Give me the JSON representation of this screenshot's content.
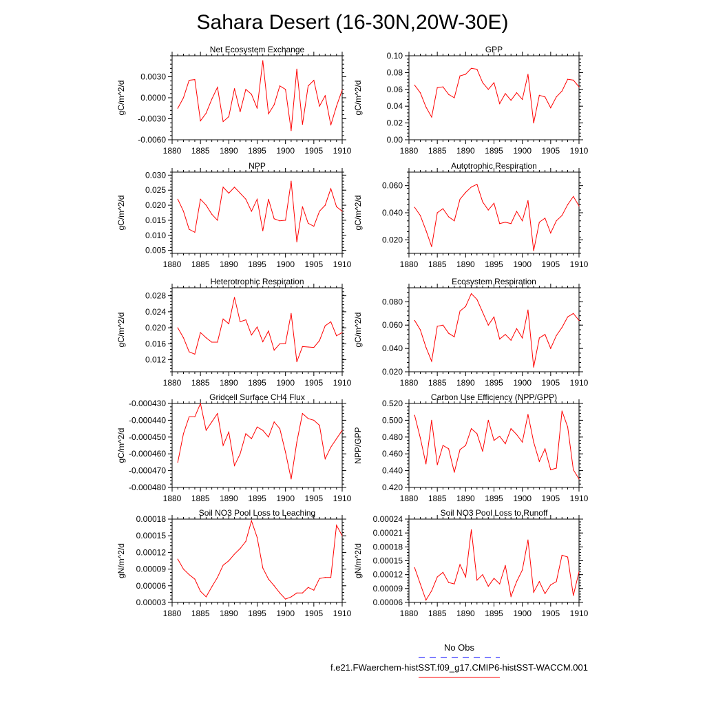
{
  "title": "Sahara Desert (16-30N,20W-30E)",
  "colors": {
    "model_line": "#ff0000",
    "obs_line": "#0000ff",
    "axis": "#000000"
  },
  "legend": {
    "entries": [
      {
        "label": "No Obs",
        "color": "#0000ff",
        "style": "dashed"
      },
      {
        "label": "f.e21.FWaerchem-histSST.f09_g17.CMIP6-histSST-WACCM.001",
        "color": "#ff0000",
        "style": "solid"
      }
    ]
  },
  "chart_data": [
    {
      "type": "line",
      "title": "Net Ecosystem Exchange",
      "xlabel": "",
      "ylabel": "gC/m^2/d",
      "xlim": [
        1880,
        1910
      ],
      "ylim": [
        -0.006,
        0.006
      ],
      "xticks": [
        "1880",
        "1885",
        "1890",
        "1895",
        "1900",
        "1905",
        "1910"
      ],
      "yticks": [
        -0.006,
        -0.003,
        0.0,
        0.003
      ],
      "ytick_labels": [
        "-0.0060",
        "-0.0030",
        "0.0000",
        "0.0030"
      ],
      "x": [
        1881,
        1882,
        1883,
        1884,
        1885,
        1886,
        1887,
        1888,
        1889,
        1890,
        1891,
        1892,
        1893,
        1894,
        1895,
        1896,
        1897,
        1898,
        1899,
        1900,
        1901,
        1902,
        1903,
        1904,
        1905,
        1906,
        1907,
        1908,
        1909,
        1910
      ],
      "series": [
        {
          "name": "f.e21.FWaerchem-histSST.f09_g17.CMIP6-histSST-WACCM.001",
          "values": [
            -0.0015,
            0.0,
            0.0025,
            0.0026,
            -0.0033,
            -0.0022,
            -0.0002,
            0.0015,
            -0.0034,
            -0.0027,
            0.0013,
            -0.002,
            0.0012,
            0.0005,
            -0.0015,
            0.0053,
            -0.0023,
            -0.001,
            0.0017,
            0.0012,
            -0.0047,
            0.0041,
            -0.0038,
            0.0017,
            0.0025,
            -0.0012,
            0.0003,
            -0.0039,
            -0.0012,
            0.0011
          ]
        }
      ]
    },
    {
      "type": "line",
      "title": "GPP",
      "xlabel": "",
      "ylabel": "gC/m^2/d",
      "xlim": [
        1880,
        1910
      ],
      "ylim": [
        0.0,
        0.1
      ],
      "xticks": [
        "1880",
        "1885",
        "1890",
        "1895",
        "1900",
        "1905",
        "1910"
      ],
      "yticks": [
        0.0,
        0.02,
        0.04,
        0.06,
        0.08,
        0.1
      ],
      "ytick_labels": [
        "0.00",
        "0.02",
        "0.04",
        "0.06",
        "0.08",
        "0.10"
      ],
      "x": [
        1881,
        1882,
        1883,
        1884,
        1885,
        1886,
        1887,
        1888,
        1889,
        1890,
        1891,
        1892,
        1893,
        1894,
        1895,
        1896,
        1897,
        1898,
        1899,
        1900,
        1901,
        1902,
        1903,
        1904,
        1905,
        1906,
        1907,
        1908,
        1909,
        1910
      ],
      "series": [
        {
          "name": "f.e21.FWaerchem-histSST.f09_g17.CMIP6-histSST-WACCM.001",
          "values": [
            0.065,
            0.056,
            0.039,
            0.027,
            0.062,
            0.063,
            0.054,
            0.05,
            0.076,
            0.078,
            0.085,
            0.084,
            0.068,
            0.06,
            0.068,
            0.043,
            0.055,
            0.047,
            0.056,
            0.048,
            0.078,
            0.02,
            0.053,
            0.051,
            0.038,
            0.051,
            0.058,
            0.072,
            0.071,
            0.063
          ]
        }
      ]
    },
    {
      "type": "line",
      "title": "NPP",
      "xlabel": "",
      "ylabel": "gC/m^2/d",
      "xlim": [
        1880,
        1910
      ],
      "ylim": [
        0.004,
        0.031
      ],
      "xticks": [
        "1880",
        "1885",
        "1890",
        "1895",
        "1900",
        "1905",
        "1910"
      ],
      "yticks": [
        0.005,
        0.01,
        0.015,
        0.02,
        0.025,
        0.03
      ],
      "ytick_labels": [
        "0.005",
        "0.010",
        "0.015",
        "0.020",
        "0.025",
        "0.030"
      ],
      "x": [
        1881,
        1882,
        1883,
        1884,
        1885,
        1886,
        1887,
        1888,
        1889,
        1890,
        1891,
        1892,
        1893,
        1894,
        1895,
        1896,
        1897,
        1898,
        1899,
        1900,
        1901,
        1902,
        1903,
        1904,
        1905,
        1906,
        1907,
        1908,
        1909,
        1910
      ],
      "series": [
        {
          "name": "f.e21.FWaerchem-histSST.f09_g17.CMIP6-histSST-WACCM.001",
          "values": [
            0.022,
            0.018,
            0.012,
            0.011,
            0.022,
            0.02,
            0.017,
            0.015,
            0.026,
            0.024,
            0.026,
            0.024,
            0.022,
            0.018,
            0.022,
            0.0115,
            0.022,
            0.0155,
            0.0148,
            0.015,
            0.028,
            0.0078,
            0.0195,
            0.014,
            0.013,
            0.018,
            0.02,
            0.0255,
            0.0195,
            0.018
          ]
        }
      ]
    },
    {
      "type": "line",
      "title": "Autotrophic Respiration",
      "xlabel": "",
      "ylabel": "gC/m^2/d",
      "xlim": [
        1880,
        1910
      ],
      "ylim": [
        0.01,
        0.07
      ],
      "xticks": [
        "1880",
        "1885",
        "1890",
        "1895",
        "1900",
        "1905",
        "1910"
      ],
      "yticks": [
        0.02,
        0.04,
        0.06
      ],
      "ytick_labels": [
        "0.020",
        "0.040",
        "0.060"
      ],
      "x": [
        1881,
        1882,
        1883,
        1884,
        1885,
        1886,
        1887,
        1888,
        1889,
        1890,
        1891,
        1892,
        1893,
        1894,
        1895,
        1896,
        1897,
        1898,
        1899,
        1900,
        1901,
        1902,
        1903,
        1904,
        1905,
        1906,
        1907,
        1908,
        1909,
        1910
      ],
      "series": [
        {
          "name": "f.e21.FWaerchem-histSST.f09_g17.CMIP6-histSST-WACCM.001",
          "values": [
            0.044,
            0.038,
            0.027,
            0.015,
            0.04,
            0.043,
            0.037,
            0.034,
            0.05,
            0.055,
            0.059,
            0.061,
            0.048,
            0.042,
            0.047,
            0.032,
            0.033,
            0.032,
            0.041,
            0.034,
            0.049,
            0.012,
            0.033,
            0.036,
            0.025,
            0.034,
            0.038,
            0.046,
            0.052,
            0.045
          ]
        }
      ]
    },
    {
      "type": "line",
      "title": "Heterotrophic Respiration",
      "xlabel": "",
      "ylabel": "gC/m^2/d",
      "xlim": [
        1880,
        1910
      ],
      "ylim": [
        0.009,
        0.03
      ],
      "xticks": [
        "1880",
        "1885",
        "1890",
        "1895",
        "1900",
        "1905",
        "1910"
      ],
      "yticks": [
        0.012,
        0.016,
        0.02,
        0.024,
        0.028
      ],
      "ytick_labels": [
        "0.012",
        "0.016",
        "0.020",
        "0.024",
        "0.028"
      ],
      "x": [
        1881,
        1882,
        1883,
        1884,
        1885,
        1886,
        1887,
        1888,
        1889,
        1890,
        1891,
        1892,
        1893,
        1894,
        1895,
        1896,
        1897,
        1898,
        1899,
        1900,
        1901,
        1902,
        1903,
        1904,
        1905,
        1906,
        1907,
        1908,
        1909,
        1910
      ],
      "series": [
        {
          "name": "f.e21.FWaerchem-histSST.f09_g17.CMIP6-histSST-WACCM.001",
          "values": [
            0.02,
            0.0175,
            0.014,
            0.0134,
            0.0188,
            0.0175,
            0.0164,
            0.0164,
            0.0222,
            0.021,
            0.0276,
            0.0215,
            0.022,
            0.0182,
            0.0202,
            0.0165,
            0.0192,
            0.0144,
            0.016,
            0.0161,
            0.0236,
            0.0115,
            0.0153,
            0.0152,
            0.0151,
            0.0168,
            0.0205,
            0.0215,
            0.018,
            0.0188
          ]
        }
      ]
    },
    {
      "type": "line",
      "title": "Ecosystem Respiration",
      "xlabel": "",
      "ylabel": "gC/m^2/d",
      "xlim": [
        1880,
        1910
      ],
      "ylim": [
        0.02,
        0.092
      ],
      "xticks": [
        "1880",
        "1885",
        "1890",
        "1895",
        "1900",
        "1905",
        "1910"
      ],
      "yticks": [
        0.02,
        0.04,
        0.06,
        0.08
      ],
      "ytick_labels": [
        "0.020",
        "0.040",
        "0.060",
        "0.080"
      ],
      "x": [
        1881,
        1882,
        1883,
        1884,
        1885,
        1886,
        1887,
        1888,
        1889,
        1890,
        1891,
        1892,
        1893,
        1894,
        1895,
        1896,
        1897,
        1898,
        1899,
        1900,
        1901,
        1902,
        1903,
        1904,
        1905,
        1906,
        1907,
        1908,
        1909,
        1910
      ],
      "series": [
        {
          "name": "f.e21.FWaerchem-histSST.f09_g17.CMIP6-histSST-WACCM.001",
          "values": [
            0.064,
            0.056,
            0.041,
            0.029,
            0.059,
            0.06,
            0.053,
            0.05,
            0.072,
            0.076,
            0.087,
            0.082,
            0.071,
            0.06,
            0.067,
            0.048,
            0.052,
            0.047,
            0.057,
            0.049,
            0.073,
            0.024,
            0.049,
            0.052,
            0.04,
            0.051,
            0.058,
            0.067,
            0.07,
            0.064
          ]
        }
      ]
    },
    {
      "type": "line",
      "title": "Gridcell Surface CH4 Flux",
      "xlabel": "",
      "ylabel": "gC/m^2/d",
      "xlim": [
        1880,
        1910
      ],
      "ylim": [
        -0.00048,
        -0.00043
      ],
      "xticks": [
        "1880",
        "1885",
        "1890",
        "1895",
        "1900",
        "1905",
        "1910"
      ],
      "yticks": [
        -0.00048,
        -0.00047,
        -0.00046,
        -0.00045,
        -0.00044,
        -0.00043
      ],
      "ytick_labels": [
        "-0.000480",
        "-0.000470",
        "-0.000460",
        "-0.000450",
        "-0.000440",
        "-0.000430"
      ],
      "x": [
        1881,
        1882,
        1883,
        1884,
        1885,
        1886,
        1887,
        1888,
        1889,
        1890,
        1891,
        1892,
        1893,
        1894,
        1895,
        1896,
        1897,
        1898,
        1899,
        1900,
        1901,
        1902,
        1903,
        1904,
        1905,
        1906,
        1907,
        1908,
        1909,
        1910
      ],
      "series": [
        {
          "name": "f.e21.FWaerchem-histSST.f09_g17.CMIP6-histSST-WACCM.001",
          "values": [
            -0.000465,
            -0.000448,
            -0.000438,
            -0.000438,
            -0.00043,
            -0.000446,
            -0.000441,
            -0.000436,
            -0.000455,
            -0.000447,
            -0.000467,
            -0.00046,
            -0.000448,
            -0.000451,
            -0.000444,
            -0.000446,
            -0.00045,
            -0.000441,
            -0.000445,
            -0.000459,
            -0.000475,
            -0.000453,
            -0.000436,
            -0.000439,
            -0.00044,
            -0.000443,
            -0.000463,
            -0.000456,
            -0.000451,
            -0.000446
          ]
        }
      ]
    },
    {
      "type": "line",
      "title": "Carbon Use Efficiency (NPP/GPP)",
      "xlabel": "",
      "ylabel": "NPP/GPP",
      "xlim": [
        1880,
        1910
      ],
      "ylim": [
        0.42,
        0.52
      ],
      "xticks": [
        "1880",
        "1885",
        "1890",
        "1895",
        "1900",
        "1905",
        "1910"
      ],
      "yticks": [
        0.42,
        0.44,
        0.46,
        0.48,
        0.5,
        0.52
      ],
      "ytick_labels": [
        "0.420",
        "0.440",
        "0.460",
        "0.480",
        "0.500",
        "0.520"
      ],
      "x": [
        1881,
        1882,
        1883,
        1884,
        1885,
        1886,
        1887,
        1888,
        1889,
        1890,
        1891,
        1892,
        1893,
        1894,
        1895,
        1896,
        1897,
        1898,
        1899,
        1900,
        1901,
        1902,
        1903,
        1904,
        1905,
        1906,
        1907,
        1908,
        1909,
        1910
      ],
      "series": [
        {
          "name": "f.e21.FWaerchem-histSST.f09_g17.CMIP6-histSST-WACCM.001",
          "values": [
            0.506,
            0.479,
            0.448,
            0.5,
            0.447,
            0.47,
            0.466,
            0.438,
            0.465,
            0.47,
            0.49,
            0.484,
            0.463,
            0.5,
            0.476,
            0.481,
            0.472,
            0.49,
            0.483,
            0.474,
            0.507,
            0.474,
            0.451,
            0.466,
            0.441,
            0.443,
            0.511,
            0.492,
            0.441,
            0.43
          ]
        }
      ]
    },
    {
      "type": "line",
      "title": "Soil NO3 Pool Loss to Leaching",
      "xlabel": "",
      "ylabel": "gN/m^2/d",
      "xlim": [
        1880,
        1910
      ],
      "ylim": [
        3e-05,
        0.00018
      ],
      "xticks": [
        "1880",
        "1885",
        "1890",
        "1895",
        "1900",
        "1905",
        "1910"
      ],
      "yticks": [
        3e-05,
        6e-05,
        9e-05,
        0.00012,
        0.00015,
        0.00018
      ],
      "ytick_labels": [
        "0.00003",
        "0.00006",
        "0.00009",
        "0.00012",
        "0.00015",
        "0.00018"
      ],
      "x": [
        1881,
        1882,
        1883,
        1884,
        1885,
        1886,
        1887,
        1888,
        1889,
        1890,
        1891,
        1892,
        1893,
        1894,
        1895,
        1896,
        1897,
        1898,
        1899,
        1900,
        1901,
        1902,
        1903,
        1904,
        1905,
        1906,
        1907,
        1908,
        1909,
        1910
      ],
      "series": [
        {
          "name": "f.e21.FWaerchem-histSST.f09_g17.CMIP6-histSST-WACCM.001",
          "values": [
            0.000108,
            9e-05,
            8e-05,
            7.2e-05,
            5e-05,
            4e-05,
            5.8e-05,
            7.5e-05,
            9.7e-05,
            0.000105,
            0.000117,
            0.000127,
            0.00014,
            0.000177,
            0.000147,
            9.2e-05,
            7.2e-05,
            6e-05,
            4.7e-05,
            3.6e-05,
            4e-05,
            4.7e-05,
            4.7e-05,
            5.7e-05,
            5.2e-05,
            7.3e-05,
            7.5e-05,
            7.5e-05,
            0.000169,
            0.00015
          ]
        }
      ]
    },
    {
      "type": "line",
      "title": "Soil NO3 Pool Loss to Runoff",
      "xlabel": "",
      "ylabel": "gN/m^2/d",
      "xlim": [
        1880,
        1910
      ],
      "ylim": [
        6e-05,
        0.00024
      ],
      "xticks": [
        "1880",
        "1885",
        "1890",
        "1895",
        "1900",
        "1905",
        "1910"
      ],
      "yticks": [
        6e-05,
        9e-05,
        0.00012,
        0.00015,
        0.00018,
        0.00021,
        0.00024
      ],
      "ytick_labels": [
        "0.00006",
        "0.00009",
        "0.00012",
        "0.00015",
        "0.00018",
        "0.00021",
        "0.00024"
      ],
      "x": [
        1881,
        1882,
        1883,
        1884,
        1885,
        1886,
        1887,
        1888,
        1889,
        1890,
        1891,
        1892,
        1893,
        1894,
        1895,
        1896,
        1897,
        1898,
        1899,
        1900,
        1901,
        1902,
        1903,
        1904,
        1905,
        1906,
        1907,
        1908,
        1909,
        1910
      ],
      "series": [
        {
          "name": "f.e21.FWaerchem-histSST.f09_g17.CMIP6-histSST-WACCM.001",
          "values": [
            0.000135,
            0.0001,
            6.5e-05,
            8.5e-05,
            0.000115,
            0.000125,
            0.000103,
            0.0001,
            0.000142,
            0.000115,
            0.000217,
            0.000108,
            0.00012,
            9.5e-05,
            0.000112,
            0.0001,
            0.00014,
            7.3e-05,
            0.000105,
            0.00013,
            0.000195,
            8.2e-05,
            0.000105,
            7.9e-05,
            9.8e-05,
            0.000105,
            0.000162,
            0.000158,
            7.5e-05,
            0.000126
          ]
        }
      ]
    }
  ]
}
